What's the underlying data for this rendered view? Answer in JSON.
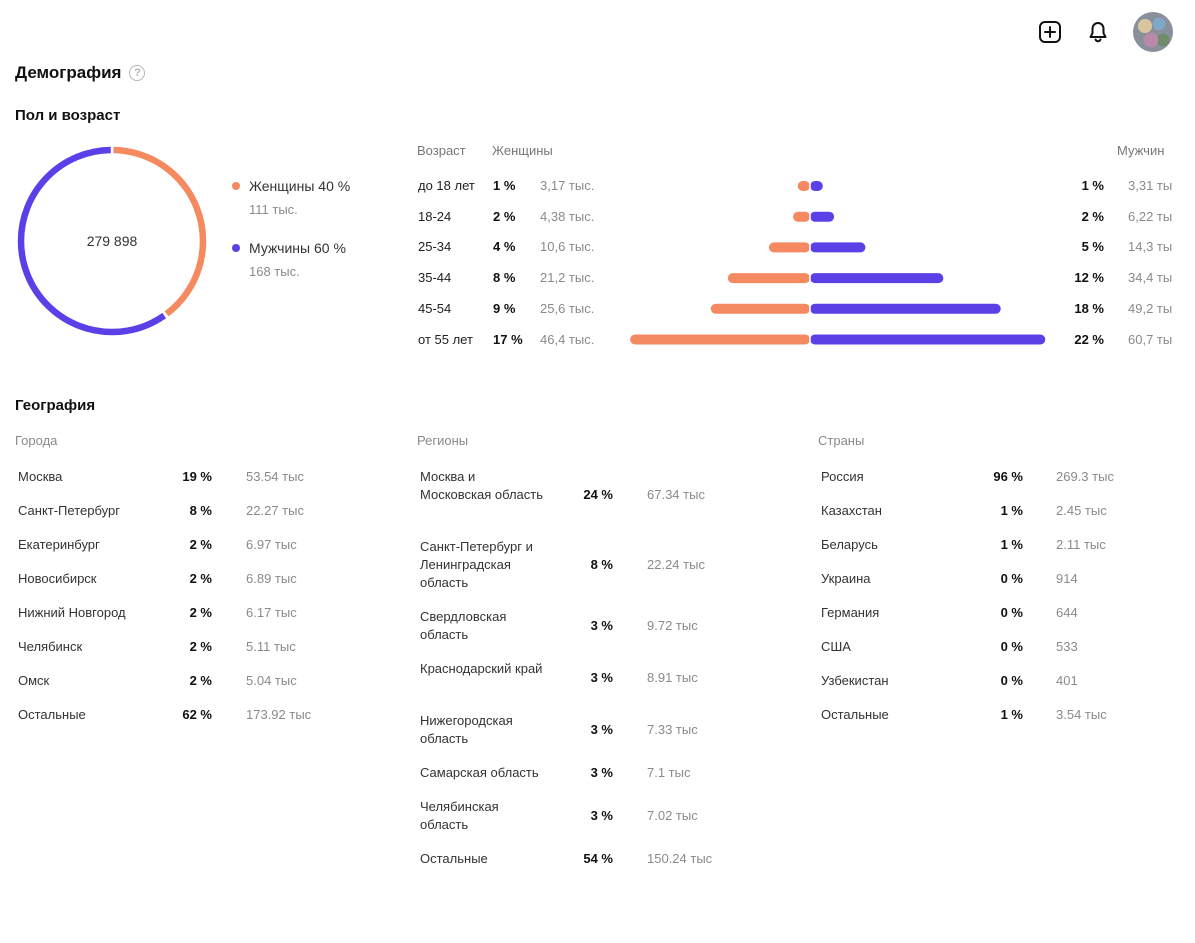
{
  "topbar": {
    "add_icon": "plus-square-icon",
    "bell_icon": "bell-icon"
  },
  "page": {
    "title": "Демография"
  },
  "gender_age": {
    "title": "Пол и возраст",
    "total": "279 898",
    "women": {
      "label": "Женщины 40 %",
      "count": "111 тыс.",
      "share": 0.4,
      "color": "#f5895f"
    },
    "men": {
      "label": "Мужчины 60 %",
      "count": "168 тыс.",
      "share": 0.6,
      "color": "#5b40e8"
    },
    "headers": {
      "age": "Возраст",
      "women": "Женщины",
      "men": "Мужчин"
    },
    "rows": [
      {
        "age": "до 18 лет",
        "w_pct": "1 %",
        "w_cnt": "3,17 тыс.",
        "m_pct": "1 %",
        "m_cnt": "3,31 ты",
        "w_val": 3.17,
        "m_val": 3.31
      },
      {
        "age": "18-24",
        "w_pct": "2 %",
        "w_cnt": "4,38 тыс.",
        "m_pct": "2 %",
        "m_cnt": "6,22 ты",
        "w_val": 4.38,
        "m_val": 6.22
      },
      {
        "age": "25-34",
        "w_pct": "4 %",
        "w_cnt": "10,6 тыс.",
        "m_pct": "5 %",
        "m_cnt": "14,3 ты",
        "w_val": 10.6,
        "m_val": 14.3
      },
      {
        "age": "35-44",
        "w_pct": "8 %",
        "w_cnt": "21,2 тыс.",
        "m_pct": "12 %",
        "m_cnt": "34,4 ты",
        "w_val": 21.2,
        "m_val": 34.4
      },
      {
        "age": "45-54",
        "w_pct": "9 %",
        "w_cnt": "25,6 тыс.",
        "m_pct": "18 %",
        "m_cnt": "49,2 ты",
        "w_val": 25.6,
        "m_val": 49.2
      },
      {
        "age": "от 55 лет",
        "w_pct": "17 %",
        "w_cnt": "46,4 тыс.",
        "m_pct": "22 %",
        "m_cnt": "60,7 ты",
        "w_val": 46.4,
        "m_val": 60.7
      }
    ]
  },
  "geography": {
    "title": "География",
    "cities": {
      "title": "Города",
      "rows": [
        {
          "name": "Москва",
          "pct": "19 %",
          "cnt": "53.54 тыс"
        },
        {
          "name": "Санкт-Петербург",
          "pct": "8 %",
          "cnt": "22.27 тыс"
        },
        {
          "name": "Екатеринбург",
          "pct": "2 %",
          "cnt": "6.97 тыс"
        },
        {
          "name": "Новосибирск",
          "pct": "2 %",
          "cnt": "6.89 тыс"
        },
        {
          "name": "Нижний Новгород",
          "pct": "2 %",
          "cnt": "6.17 тыс"
        },
        {
          "name": "Челябинск",
          "pct": "2 %",
          "cnt": "5.11 тыс"
        },
        {
          "name": "Омск",
          "pct": "2 %",
          "cnt": "5.04 тыс"
        },
        {
          "name": "Остальные",
          "pct": "62 %",
          "cnt": "173.92 тыс"
        }
      ]
    },
    "regions": {
      "title": "Регионы",
      "rows": [
        {
          "name": "Москва и Московская область",
          "pct": "24 %",
          "cnt": "67.34 тыс"
        },
        {
          "name": "Санкт-Петербург и Ленинградская область",
          "pct": "8 %",
          "cnt": "22.24 тыс"
        },
        {
          "name": "Свердловская область",
          "pct": "3 %",
          "cnt": "9.72 тыс"
        },
        {
          "name": "Краснодарский край",
          "pct": "3 %",
          "cnt": "8.91 тыс"
        },
        {
          "name": "Нижегородская область",
          "pct": "3 %",
          "cnt": "7.33 тыс"
        },
        {
          "name": "Самарская область",
          "pct": "3 %",
          "cnt": "7.1 тыс"
        },
        {
          "name": "Челябинская область",
          "pct": "3 %",
          "cnt": "7.02 тыс"
        },
        {
          "name": "Остальные",
          "pct": "54 %",
          "cnt": "150.24 тыс"
        }
      ]
    },
    "countries": {
      "title": "Страны",
      "rows": [
        {
          "name": "Россия",
          "pct": "96 %",
          "cnt": "269.3 тыс"
        },
        {
          "name": "Казахстан",
          "pct": "1 %",
          "cnt": "2.45 тыс"
        },
        {
          "name": "Беларусь",
          "pct": "1 %",
          "cnt": "2.11 тыс"
        },
        {
          "name": "Украина",
          "pct": "0 %",
          "cnt": "914"
        },
        {
          "name": "Германия",
          "pct": "0 %",
          "cnt": "644"
        },
        {
          "name": "США",
          "pct": "0 %",
          "cnt": "533"
        },
        {
          "name": "Узбекистан",
          "pct": "0 %",
          "cnt": "401"
        },
        {
          "name": "Остальные",
          "pct": "1 %",
          "cnt": "3.54 тыс"
        }
      ]
    }
  }
}
